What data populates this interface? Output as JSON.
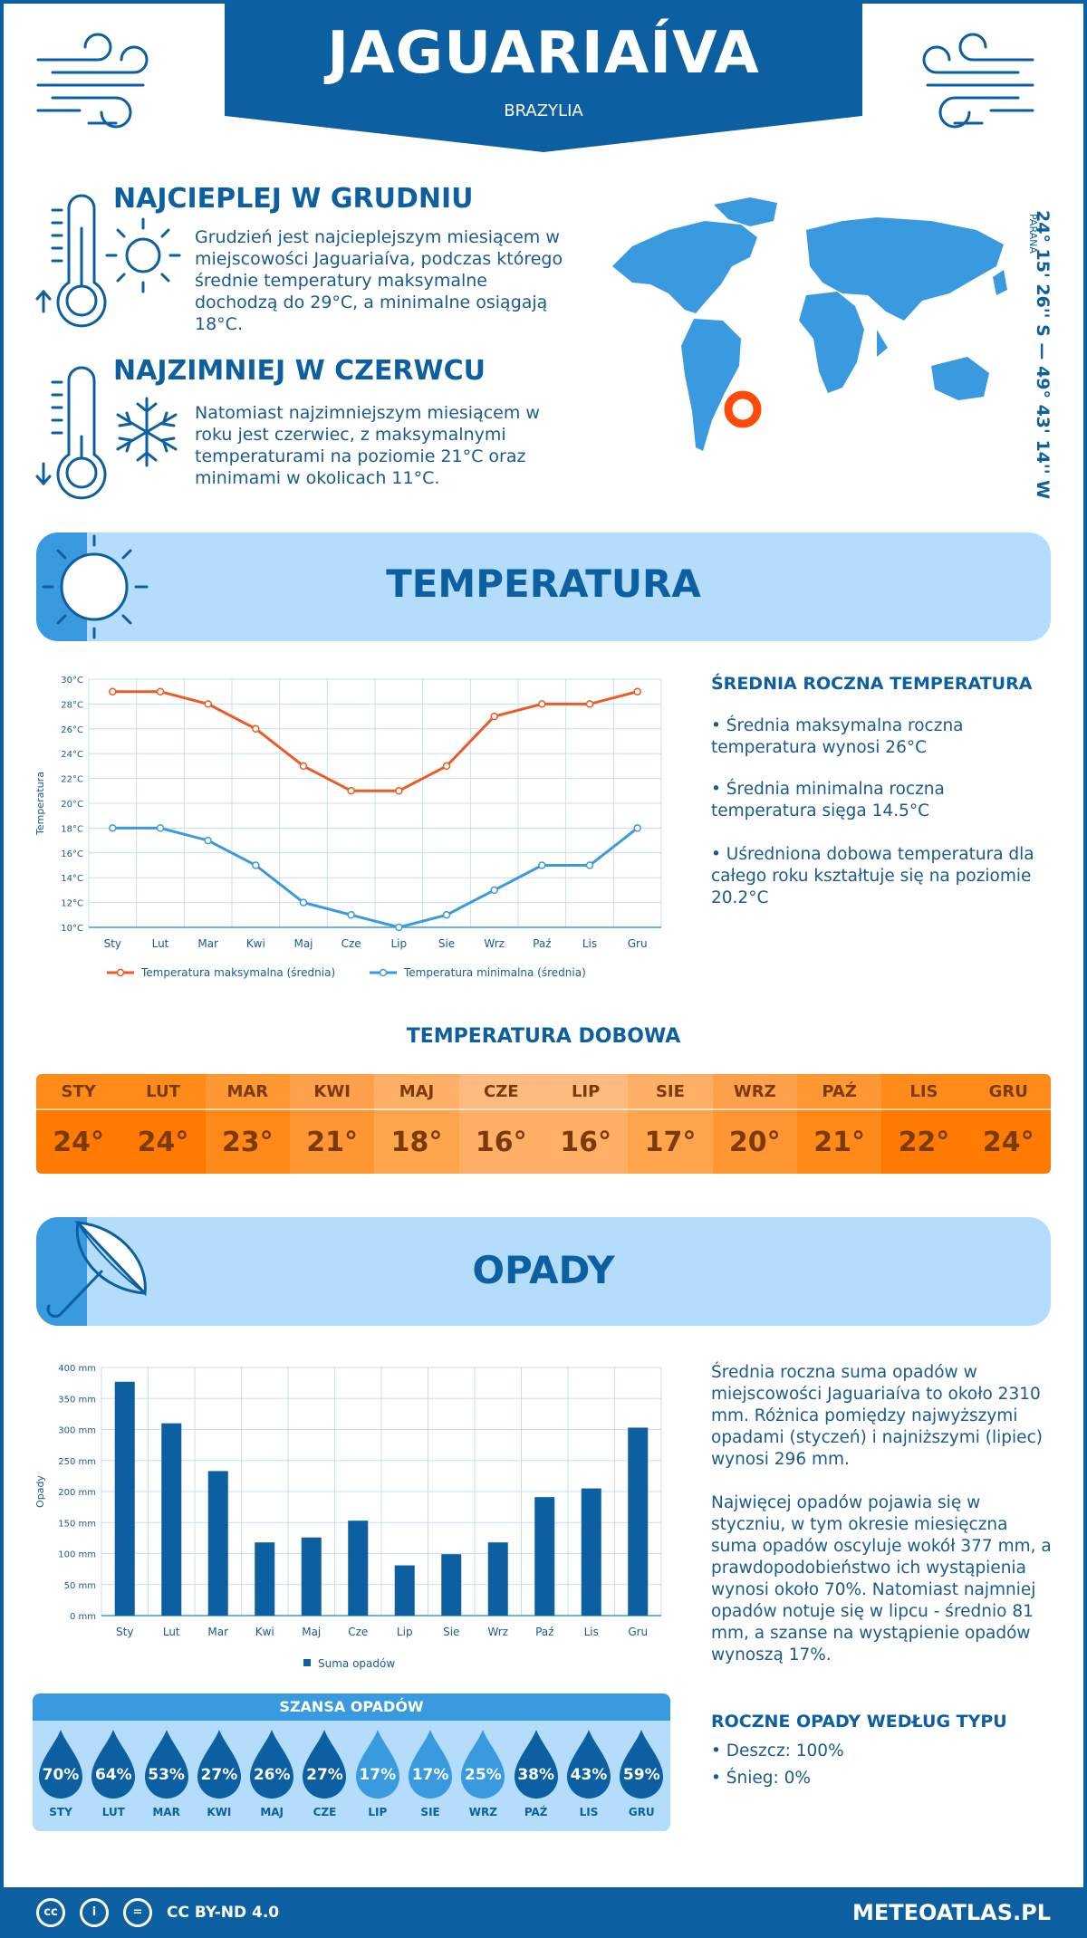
{
  "header": {
    "city": "JAGUARIAÍVA",
    "country": "BRAZYLIA"
  },
  "warmest": {
    "title": "NAJCIEPLEJ W GRUDNIU",
    "text": "Grudzień jest najcieplejszym miesiącem w miejscowości Jaguariaíva, podczas którego średnie temperatury maksymalne dochodzą do 29°C, a minimalne osiągają 18°C."
  },
  "coldest": {
    "title": "NAJZIMNIEJ W CZERWCU",
    "text": "Natomiast najzimniejszym miesiącem w roku jest czerwiec, z maksymalnymi temperaturami na poziomie 21°C oraz minimami w okolicach 11°C."
  },
  "location": {
    "coords": "24° 15' 26'' S — 49° 43' 14'' W",
    "region": "PARANÁ"
  },
  "temperature_section": {
    "title": "TEMPERATURA",
    "side_title": "ŚREDNIA ROCZNA TEMPERATURA",
    "bullets": [
      "• Średnia maksymalna roczna temperatura wynosi 26°C",
      "• Średnia minimalna roczna temperatura sięga 14.5°C",
      "• Uśredniona dobowa temperatura dla całego roku kształtuje się na poziomie 20.2°C"
    ]
  },
  "daily": {
    "title": "TEMPERATURA DOBOWA",
    "months": [
      "STY",
      "LUT",
      "MAR",
      "KWI",
      "MAJ",
      "CZE",
      "LIP",
      "SIE",
      "WRZ",
      "PAŹ",
      "LIS",
      "GRU"
    ],
    "values": [
      "24°",
      "24°",
      "23°",
      "21°",
      "18°",
      "16°",
      "16°",
      "17°",
      "20°",
      "21°",
      "22°",
      "24°"
    ],
    "colors_head": [
      "#ff8c1a",
      "#ff8c1a",
      "#ff9733",
      "#ffa04d",
      "#ffb066",
      "#ffba80",
      "#ffba80",
      "#ffb066",
      "#ffa04d",
      "#ff9733",
      "#ff8c1a",
      "#ff8c1a"
    ],
    "colors_val": [
      "#ff7a00",
      "#ff7a00",
      "#ff8a1a",
      "#ff9633",
      "#ffa64d",
      "#ffb066",
      "#ffb066",
      "#ffa64d",
      "#ff9633",
      "#ff8a1a",
      "#ff7a00",
      "#ff7a00"
    ]
  },
  "precip_section": {
    "title": "OPADY",
    "text1": "Średnia roczna suma opadów w miejscowości Jaguariaíva to około 2310 mm. Różnica pomiędzy najwyższymi opadami (styczeń) i najniższymi (lipiec) wynosi 296 mm.",
    "text2": "Najwięcej opadów pojawia się w styczniu, w tym okresie miesięczna suma opadów oscyluje wokół 377 mm, a prawdopodobieństwo ich wystąpienia wynosi około 70%. Natomiast najmniej opadów notuje się w lipcu - średnio 81 mm, a szanse na wystąpienie opadów wynoszą 17%.",
    "type_title": "ROCZNE OPADY WEDŁUG TYPU",
    "types": [
      "• Deszcz: 100%",
      "• Śnieg: 0%"
    ]
  },
  "chance": {
    "title": "SZANSA OPADÓW",
    "months": [
      "STY",
      "LUT",
      "MAR",
      "KWI",
      "MAJ",
      "CZE",
      "LIP",
      "SIE",
      "WRZ",
      "PAŹ",
      "LIS",
      "GRU"
    ],
    "values": [
      "70%",
      "64%",
      "53%",
      "27%",
      "26%",
      "27%",
      "17%",
      "17%",
      "25%",
      "38%",
      "43%",
      "59%"
    ],
    "colors": [
      "#0c5fa0",
      "#0c5fa0",
      "#0c5fa0",
      "#0c5fa0",
      "#0c5fa0",
      "#0c5fa0",
      "#3a9ae0",
      "#3a9ae0",
      "#3a9ae0",
      "#0c5fa0",
      "#0c5fa0",
      "#0c5fa0"
    ]
  },
  "footer": {
    "license": "CC BY-ND 4.0",
    "brand": "METEOATLAS.PL"
  },
  "chart_data": [
    {
      "type": "line",
      "categories": [
        "Sty",
        "Lut",
        "Mar",
        "Kwi",
        "Maj",
        "Cze",
        "Lip",
        "Sie",
        "Wrz",
        "Paź",
        "Lis",
        "Gru"
      ],
      "series": [
        {
          "name": "Temperatura maksymalna (średnia)",
          "values": [
            29,
            29,
            28,
            26,
            23,
            21,
            21,
            23,
            27,
            28,
            28,
            29
          ],
          "color": "#ee5a24"
        },
        {
          "name": "Temperatura minimalna (średnia)",
          "values": [
            18,
            18,
            17,
            15,
            12,
            11,
            10,
            11,
            13,
            15,
            15,
            18
          ],
          "color": "#3a9ae0"
        }
      ],
      "ylabel": "Temperatura",
      "ylim": [
        10,
        30
      ],
      "yticks": [
        "10°C",
        "12°C",
        "14°C",
        "16°C",
        "18°C",
        "20°C",
        "22°C",
        "24°C",
        "26°C",
        "28°C",
        "30°C"
      ],
      "grid": true,
      "legend": "bottom"
    },
    {
      "type": "bar",
      "categories": [
        "Sty",
        "Lut",
        "Mar",
        "Kwi",
        "Maj",
        "Cze",
        "Lip",
        "Sie",
        "Wrz",
        "Paź",
        "Lis",
        "Gru"
      ],
      "series": [
        {
          "name": "Suma opadów",
          "values": [
            377,
            310,
            233,
            118,
            126,
            153,
            81,
            99,
            118,
            191,
            205,
            303
          ],
          "color": "#0c5fa0"
        }
      ],
      "ylabel": "Opady",
      "ylim": [
        0,
        400
      ],
      "yticks": [
        "0 mm",
        "50 mm",
        "100 mm",
        "150 mm",
        "200 mm",
        "250 mm",
        "300 mm",
        "350 mm",
        "400 mm"
      ],
      "grid": true,
      "legend": "bottom"
    }
  ]
}
